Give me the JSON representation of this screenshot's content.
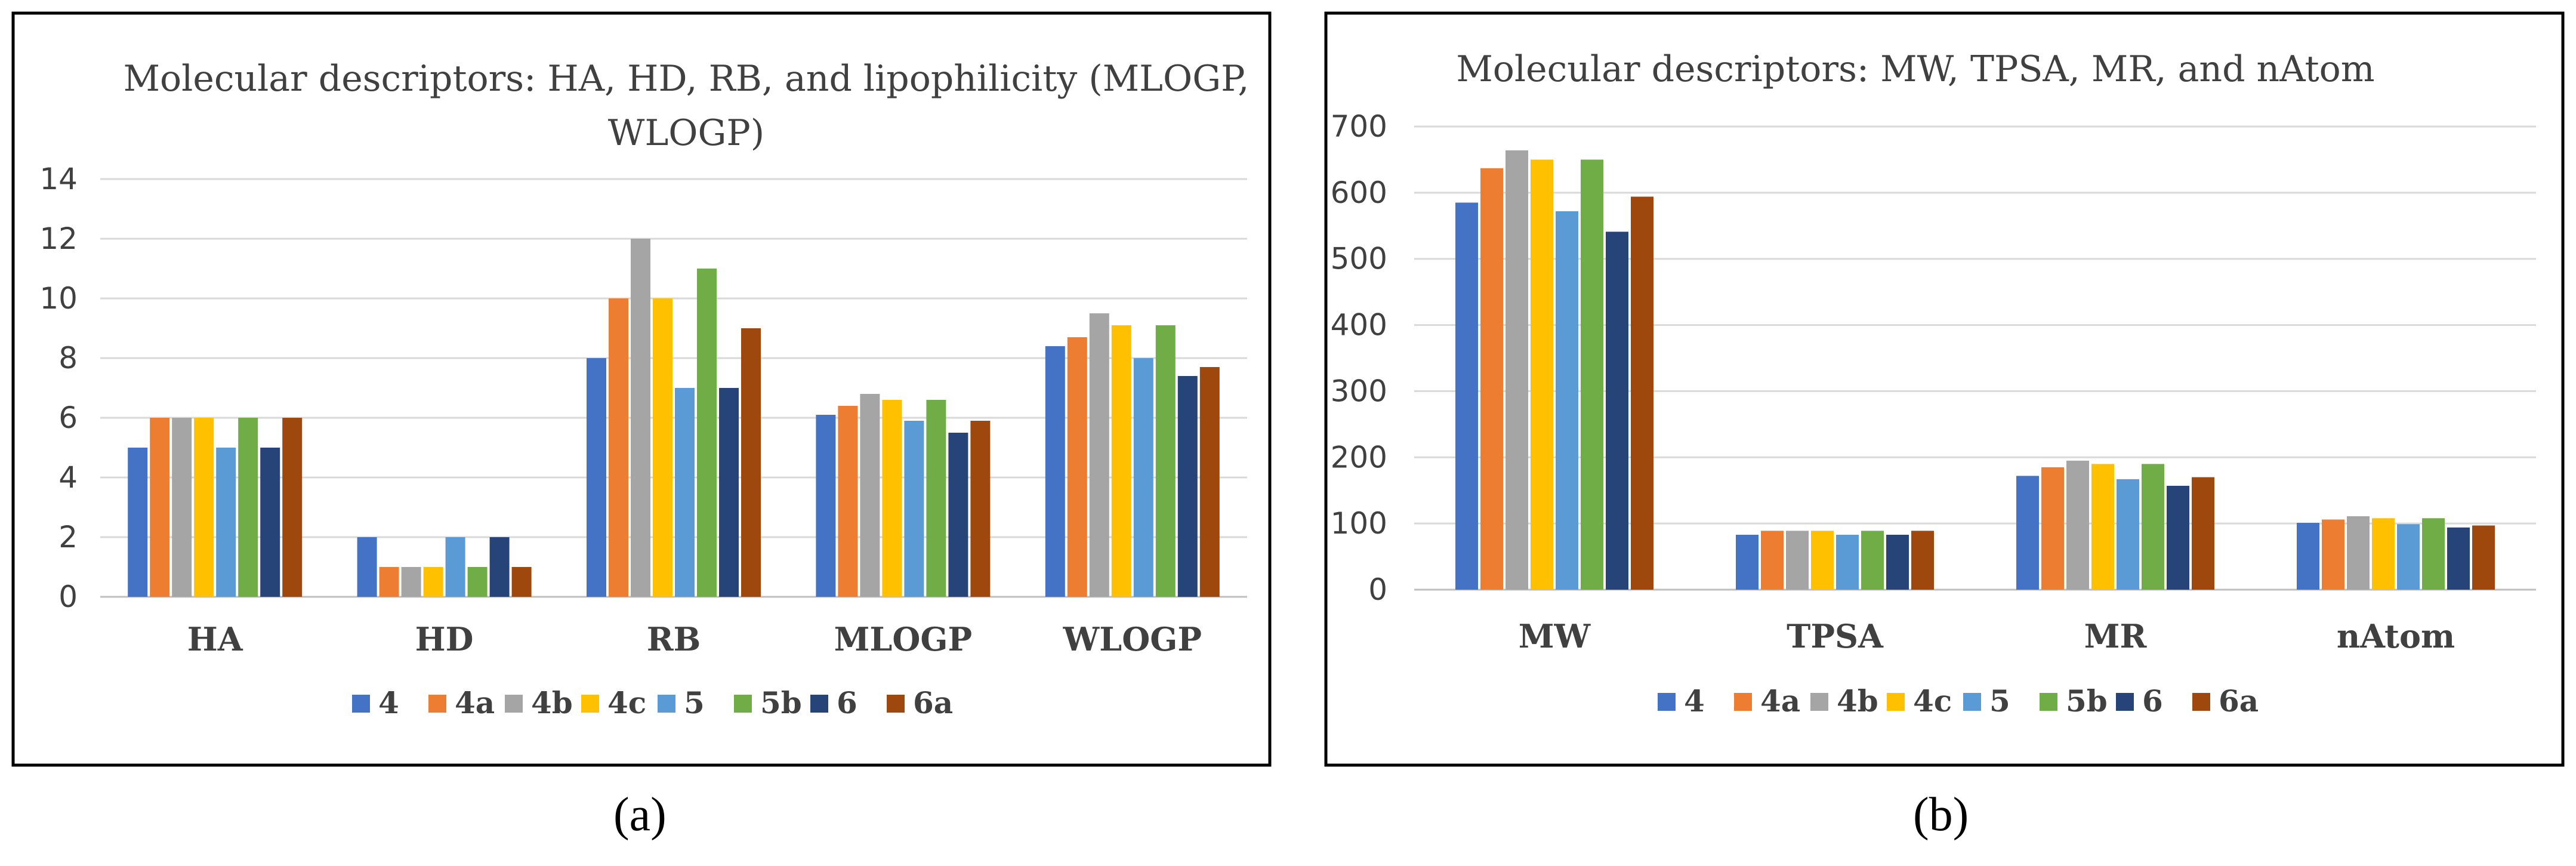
{
  "series_colors": [
    "#4472c4",
    "#ed7d31",
    "#a5a5a5",
    "#ffc000",
    "#5b9bd5",
    "#70ad47",
    "#264478",
    "#9e480e"
  ],
  "chart_data": [
    {
      "type": "bar",
      "panel_label": "(a)",
      "title_lines": [
        "Molecular descriptors: HA, HD, RB, and lipophilicity (MLOGP,",
        "WLOGP)"
      ],
      "categories": [
        "HA",
        "HD",
        "RB",
        "MLOGP",
        "WLOGP"
      ],
      "ylim": [
        0,
        14
      ],
      "yticks": [
        "0",
        "2",
        "4",
        "6",
        "8",
        "10",
        "12",
        "14"
      ],
      "ytick_values": [
        0,
        2,
        4,
        6,
        8,
        10,
        12,
        14
      ],
      "grid": true,
      "legend_position": "bottom",
      "series": [
        {
          "name": "4",
          "values": [
            5,
            2,
            8,
            6.1,
            8.4
          ]
        },
        {
          "name": "4a",
          "values": [
            6,
            1,
            10,
            6.4,
            8.7
          ]
        },
        {
          "name": "4b",
          "values": [
            6,
            1,
            12,
            6.8,
            9.5
          ]
        },
        {
          "name": "4c",
          "values": [
            6,
            1,
            10,
            6.6,
            9.1
          ]
        },
        {
          "name": "5",
          "values": [
            5,
            2,
            7,
            5.9,
            8.0
          ]
        },
        {
          "name": "5b",
          "values": [
            6,
            1,
            11,
            6.6,
            9.1
          ]
        },
        {
          "name": "6",
          "values": [
            5,
            2,
            7,
            5.5,
            7.4
          ]
        },
        {
          "name": "6a",
          "values": [
            6,
            1,
            9,
            5.9,
            7.7
          ]
        }
      ]
    },
    {
      "type": "bar",
      "panel_label": "(b)",
      "title_lines": [
        "Molecular descriptors: MW, TPSA, MR, and nAtom"
      ],
      "categories": [
        "MW",
        "TPSA",
        "MR",
        "nAtom"
      ],
      "ylim": [
        0,
        700
      ],
      "yticks": [
        "0",
        "100",
        "200",
        "300",
        "400",
        "500",
        "600",
        "700"
      ],
      "ytick_values": [
        0,
        100,
        200,
        300,
        400,
        500,
        600,
        700
      ],
      "grid": true,
      "legend_position": "bottom",
      "series": [
        {
          "name": "4",
          "values": [
            585,
            83,
            172,
            101
          ]
        },
        {
          "name": "4a",
          "values": [
            637,
            89,
            185,
            106
          ]
        },
        {
          "name": "4b",
          "values": [
            664,
            89,
            195,
            111
          ]
        },
        {
          "name": "4c",
          "values": [
            650,
            89,
            190,
            108
          ]
        },
        {
          "name": "5",
          "values": [
            572,
            83,
            167,
            99
          ]
        },
        {
          "name": "5b",
          "values": [
            650,
            89,
            190,
            108
          ]
        },
        {
          "name": "6",
          "values": [
            541,
            83,
            157,
            94
          ]
        },
        {
          "name": "6a",
          "values": [
            594,
            89,
            170,
            97
          ]
        }
      ]
    }
  ]
}
